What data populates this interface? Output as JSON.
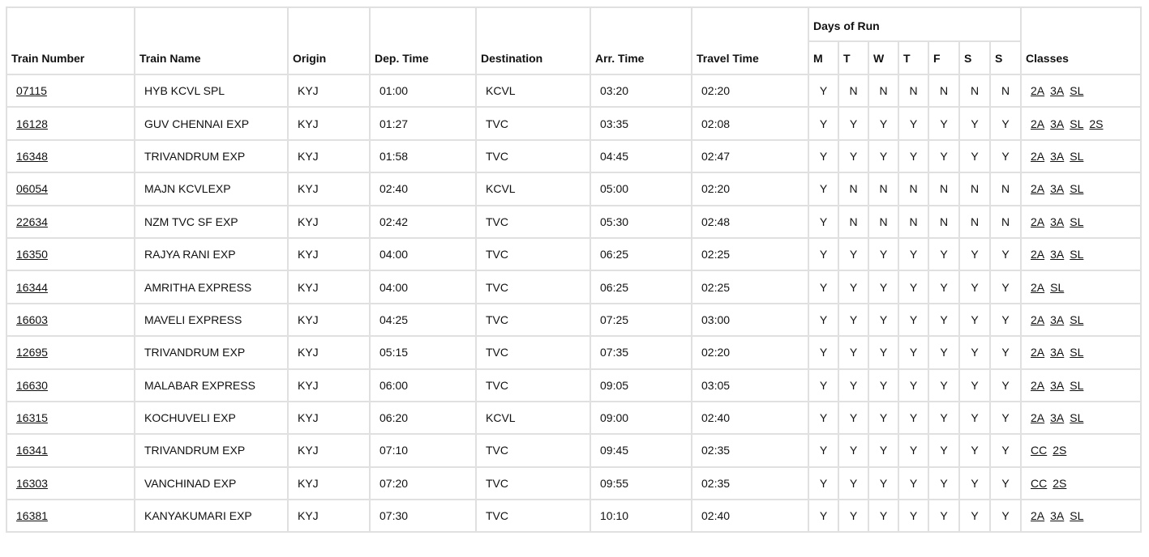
{
  "headers": {
    "train_number": "Train Number",
    "train_name": "Train Name",
    "origin": "Origin",
    "dep_time": "Dep. Time",
    "destination": "Destination",
    "arr_time": "Arr. Time",
    "travel_time": "Travel Time",
    "days_of_run": "Days of Run",
    "days": [
      "M",
      "T",
      "W",
      "T",
      "F",
      "S",
      "S"
    ],
    "classes": "Classes"
  },
  "trains": [
    {
      "number": "07115",
      "name": "HYB KCVL SPL",
      "origin": "KYJ",
      "dep": "01:00",
      "dest": "KCVL",
      "arr": "03:20",
      "travel": "02:20",
      "days": [
        "Y",
        "N",
        "N",
        "N",
        "N",
        "N",
        "N"
      ],
      "classes": [
        "2A",
        "3A",
        "SL"
      ]
    },
    {
      "number": "16128",
      "name": "GUV CHENNAI EXP",
      "origin": "KYJ",
      "dep": "01:27",
      "dest": "TVC",
      "arr": "03:35",
      "travel": "02:08",
      "days": [
        "Y",
        "Y",
        "Y",
        "Y",
        "Y",
        "Y",
        "Y"
      ],
      "classes": [
        "2A",
        "3A",
        "SL",
        "2S"
      ]
    },
    {
      "number": "16348",
      "name": "TRIVANDRUM EXP",
      "origin": "KYJ",
      "dep": "01:58",
      "dest": "TVC",
      "arr": "04:45",
      "travel": "02:47",
      "days": [
        "Y",
        "Y",
        "Y",
        "Y",
        "Y",
        "Y",
        "Y"
      ],
      "classes": [
        "2A",
        "3A",
        "SL"
      ]
    },
    {
      "number": "06054",
      "name": "MAJN KCVLEXP",
      "origin": "KYJ",
      "dep": "02:40",
      "dest": "KCVL",
      "arr": "05:00",
      "travel": "02:20",
      "days": [
        "Y",
        "N",
        "N",
        "N",
        "N",
        "N",
        "N"
      ],
      "classes": [
        "2A",
        "3A",
        "SL"
      ]
    },
    {
      "number": "22634",
      "name": "NZM TVC SF EXP",
      "origin": "KYJ",
      "dep": "02:42",
      "dest": "TVC",
      "arr": "05:30",
      "travel": "02:48",
      "days": [
        "Y",
        "N",
        "N",
        "N",
        "N",
        "N",
        "N"
      ],
      "classes": [
        "2A",
        "3A",
        "SL"
      ]
    },
    {
      "number": "16350",
      "name": "RAJYA RANI EXP",
      "origin": "KYJ",
      "dep": "04:00",
      "dest": "TVC",
      "arr": "06:25",
      "travel": "02:25",
      "days": [
        "Y",
        "Y",
        "Y",
        "Y",
        "Y",
        "Y",
        "Y"
      ],
      "classes": [
        "2A",
        "3A",
        "SL"
      ]
    },
    {
      "number": "16344",
      "name": "AMRITHA EXPRESS",
      "origin": "KYJ",
      "dep": "04:00",
      "dest": "TVC",
      "arr": "06:25",
      "travel": "02:25",
      "days": [
        "Y",
        "Y",
        "Y",
        "Y",
        "Y",
        "Y",
        "Y"
      ],
      "classes": [
        "2A",
        "SL"
      ]
    },
    {
      "number": "16603",
      "name": "MAVELI EXPRESS",
      "origin": "KYJ",
      "dep": "04:25",
      "dest": "TVC",
      "arr": "07:25",
      "travel": "03:00",
      "days": [
        "Y",
        "Y",
        "Y",
        "Y",
        "Y",
        "Y",
        "Y"
      ],
      "classes": [
        "2A",
        "3A",
        "SL"
      ]
    },
    {
      "number": "12695",
      "name": "TRIVANDRUM EXP",
      "origin": "KYJ",
      "dep": "05:15",
      "dest": "TVC",
      "arr": "07:35",
      "travel": "02:20",
      "days": [
        "Y",
        "Y",
        "Y",
        "Y",
        "Y",
        "Y",
        "Y"
      ],
      "classes": [
        "2A",
        "3A",
        "SL"
      ]
    },
    {
      "number": "16630",
      "name": "MALABAR EXPRESS",
      "origin": "KYJ",
      "dep": "06:00",
      "dest": "TVC",
      "arr": "09:05",
      "travel": "03:05",
      "days": [
        "Y",
        "Y",
        "Y",
        "Y",
        "Y",
        "Y",
        "Y"
      ],
      "classes": [
        "2A",
        "3A",
        "SL"
      ]
    },
    {
      "number": "16315",
      "name": "KOCHUVELI EXP",
      "origin": "KYJ",
      "dep": "06:20",
      "dest": "KCVL",
      "arr": "09:00",
      "travel": "02:40",
      "days": [
        "Y",
        "Y",
        "Y",
        "Y",
        "Y",
        "Y",
        "Y"
      ],
      "classes": [
        "2A",
        "3A",
        "SL"
      ]
    },
    {
      "number": "16341",
      "name": "TRIVANDRUM EXP",
      "origin": "KYJ",
      "dep": "07:10",
      "dest": "TVC",
      "arr": "09:45",
      "travel": "02:35",
      "days": [
        "Y",
        "Y",
        "Y",
        "Y",
        "Y",
        "Y",
        "Y"
      ],
      "classes": [
        "CC",
        "2S"
      ]
    },
    {
      "number": "16303",
      "name": "VANCHINAD EXP",
      "origin": "KYJ",
      "dep": "07:20",
      "dest": "TVC",
      "arr": "09:55",
      "travel": "02:35",
      "days": [
        "Y",
        "Y",
        "Y",
        "Y",
        "Y",
        "Y",
        "Y"
      ],
      "classes": [
        "CC",
        "2S"
      ]
    },
    {
      "number": "16381",
      "name": "KANYAKUMARI EXP",
      "origin": "KYJ",
      "dep": "07:30",
      "dest": "TVC",
      "arr": "10:10",
      "travel": "02:40",
      "days": [
        "Y",
        "Y",
        "Y",
        "Y",
        "Y",
        "Y",
        "Y"
      ],
      "classes": [
        "2A",
        "3A",
        "SL"
      ]
    }
  ]
}
